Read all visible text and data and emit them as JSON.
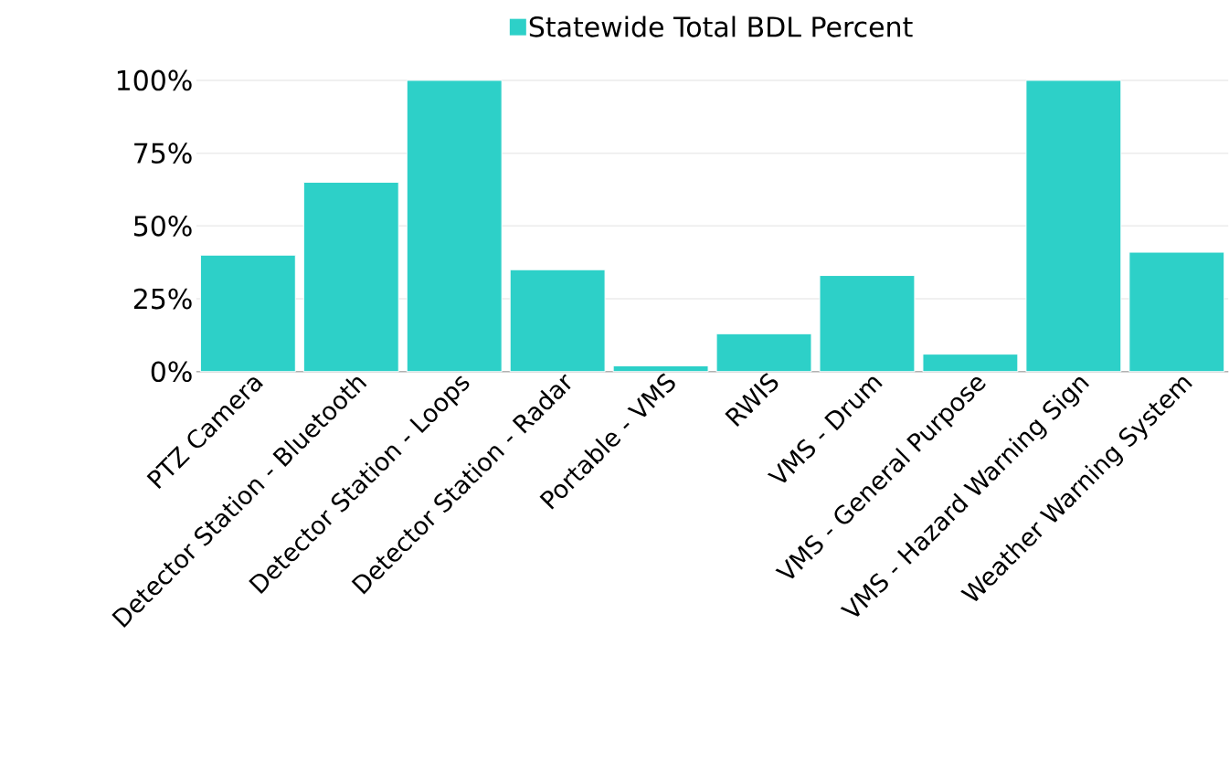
{
  "chart_data": {
    "type": "bar",
    "categories": [
      "PTZ Camera",
      "Detector Station - Bluetooth",
      "Detector Station - Loops",
      "Detector Station - Radar",
      "Portable - VMS",
      "RWIS",
      "VMS - Drum",
      "VMS - General Purpose",
      "VMS - Hazard Warning Sign",
      "Weather Warning System"
    ],
    "series": [
      {
        "name": "Statewide Total BDL Percent",
        "color": "#2dd0c8",
        "values": [
          40,
          65,
          100,
          35,
          2,
          13,
          33,
          6,
          100,
          41
        ]
      }
    ],
    "ylim": [
      0,
      100
    ],
    "yticks": [
      {
        "value": 0,
        "label": "0%"
      },
      {
        "value": 25,
        "label": "25%"
      },
      {
        "value": 50,
        "label": "50%"
      },
      {
        "value": 75,
        "label": "75%"
      },
      {
        "value": 100,
        "label": "100%"
      }
    ],
    "grid": "y",
    "legend": "top"
  }
}
